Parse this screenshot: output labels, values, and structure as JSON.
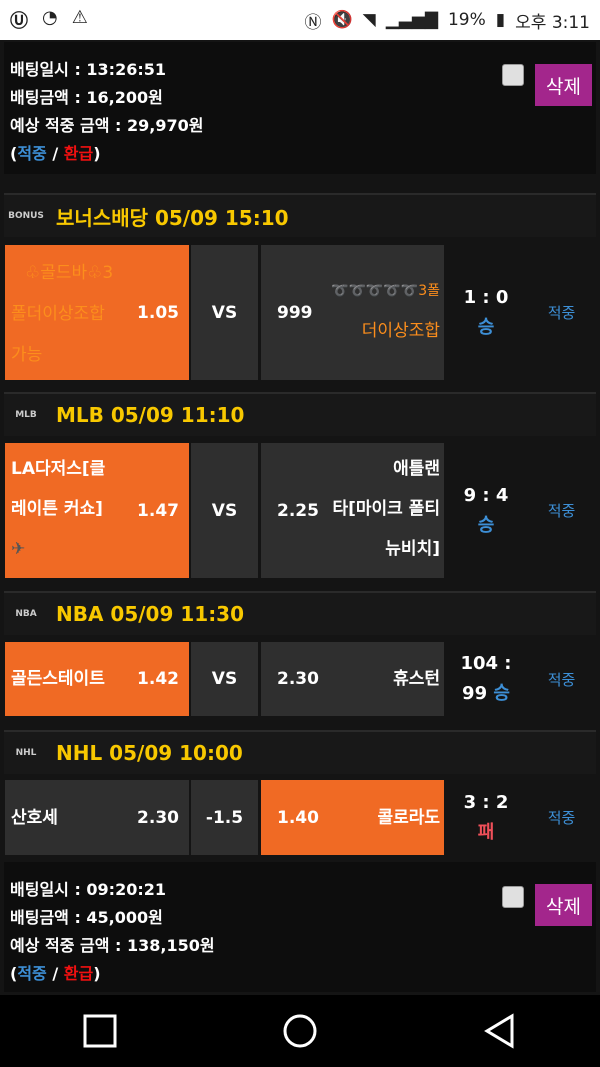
{
  "status_bar": {
    "battery": "19%",
    "time": "오후 3:11"
  },
  "bets": [
    {
      "time_label": "배팅일시 : 13:26:51",
      "amount_label": "배팅금액 : 16,200원",
      "expected_label": "예상 적중 금액 : 29,970원",
      "legend_hit": "적중",
      "legend_refund": "환급",
      "delete_label": "삭제"
    },
    {
      "time_label": "배팅일시 : 09:20:21",
      "amount_label": "배팅금액 : 45,000원",
      "expected_label": "예상 적중 금액 : 138,150원",
      "legend_hit": "적중",
      "legend_refund": "환급",
      "delete_label": "삭제"
    }
  ],
  "games": [
    {
      "league_icon": "BONUS",
      "title": "보너스배당 05/09 15:10",
      "home_line1": "♧골드바♧3",
      "home_line2": "폴더이상조합",
      "home_line3": "가능",
      "home_odds": "1.05",
      "mid": "VS",
      "away_odds": "999",
      "away_line1": "➰➰➰➰➰3폴",
      "away_line2": "더이상조합",
      "score": "1 : 0",
      "outcome": "승",
      "result": "적중"
    },
    {
      "league_icon": "MLB",
      "title": "MLB 05/09 11:10",
      "home_line1": "LA다저스[클",
      "home_line2": "레이튼 커쇼]",
      "home_odds": "1.47",
      "mid": "VS",
      "away_odds": "2.25",
      "away_line1": "애틀랜",
      "away_line2": "타[마이크 폴티",
      "away_line3": "뉴비치]",
      "score": "9 : 4",
      "outcome": "승",
      "result": "적중"
    },
    {
      "league_icon": "NBA",
      "title": "NBA 05/09 11:30",
      "home": "골든스테이트",
      "home_odds": "1.42",
      "mid": "VS",
      "away_odds": "2.30",
      "away": "휴스턴",
      "score1": "104 :",
      "score2": "99",
      "outcome": "승",
      "result": "적중"
    },
    {
      "league_icon": "NHL",
      "title": "NHL 05/09 10:00",
      "home": "산호세",
      "home_odds": "2.30",
      "mid": "-1.5",
      "away_odds": "1.40",
      "away": "콜로라도",
      "score": "3 : 2",
      "outcome": "패",
      "result": "적중"
    }
  ],
  "colors": {
    "selected": "#f06a24",
    "win": "#3d8fd6",
    "lose": "#f0505a",
    "delete": "#a3268c",
    "title": "#f8c800"
  }
}
